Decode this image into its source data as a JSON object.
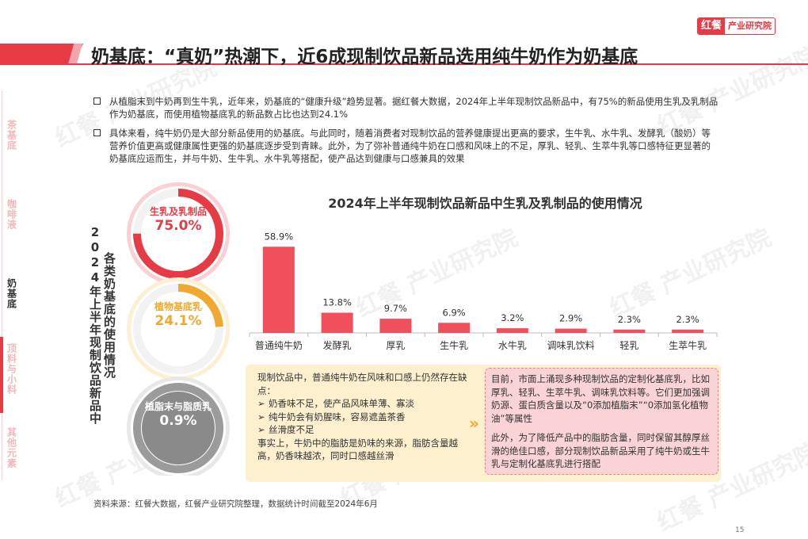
{
  "logo": {
    "mark": "红餐",
    "text": "产业研究院"
  },
  "title": "奶基底：“真奶”热潮下，近6成现制饮品新品选用纯牛奶作为奶基底",
  "sidenav": {
    "items": [
      {
        "label": "茶基底",
        "active": false
      },
      {
        "label": "咖啡液",
        "active": false
      },
      {
        "label": "奶基底",
        "active": true
      },
      {
        "label": "顶料与小料",
        "active": false
      },
      {
        "label": "其他元素",
        "active": false
      }
    ]
  },
  "bullets": [
    "从植脂末到牛奶再到生牛乳，近年来，奶基底的“健康升级”趋势显著。据红餐大数据，2024年上半年现制饮品新品中，有75%的新品使用生乳及乳制品作为奶基底，而使用植物基底乳的新品数占比也达到24.1%",
    "具体来看，纯牛奶仍是大部分新品使用的奶基底。与此同时，随着消费者对现制饮品的营养健康提出更高的要求，生牛乳、水牛乳、发酵乳（酸奶）等营养价值更高或健康属性更强的奶基底逐步受到青睐。此外，为了弥补普通纯牛奶在口感和风味上的不足，厚乳、轻乳、生萃牛乳等口感特征更显著的奶基底应运而生，并与牛奶、生牛乳、水牛乳等搭配，使产品达到健康与口感兼具的效果"
  ],
  "rings": {
    "vertical_title_1": "2024年上半年现制饮品新品中",
    "vertical_title_2": "各类奶基底的使用情况",
    "items": [
      {
        "label": "生乳及乳制品",
        "value": "75.0%",
        "share": 75.0,
        "color": "#e63a45",
        "text_color": "#e63a45"
      },
      {
        "label": "植物基底乳",
        "value": "24.1%",
        "share": 24.1,
        "color": "#f0a830",
        "text_color": "#f0a830"
      },
      {
        "label": "植脂末与脂质乳",
        "value": "0.9%",
        "share": 0.9,
        "color": "#9b9b9b",
        "text_color": "#ffffff"
      }
    ]
  },
  "chart_data": {
    "type": "bar",
    "title": "2024年上半年现制饮品新品中生乳及乳制品的使用情况",
    "categories": [
      "普通纯牛奶",
      "发酵乳",
      "厚乳",
      "生牛乳",
      "水牛乳",
      "调味乳饮料",
      "轻乳",
      "生萃牛乳"
    ],
    "values": [
      58.9,
      13.8,
      9.7,
      6.9,
      3.2,
      2.9,
      2.3,
      2.3
    ],
    "value_labels": [
      "58.9%",
      "13.8%",
      "9.7%",
      "6.9%",
      "3.2%",
      "2.9%",
      "2.3%",
      "2.3%"
    ],
    "ylim": [
      0,
      65
    ],
    "bar_color": "#f0505c",
    "grid": false
  },
  "notes": {
    "left_intro": "现制饮品中，普通纯牛奶在风味和口感上仍然存在缺点：",
    "left_points": [
      "奶香味不足，使产品风味单薄、寡淡",
      "纯牛奶会有奶腥味，容易遮盖茶香",
      "丝滑度不足"
    ],
    "left_conclusion": "事实上，牛奶中的脂肪是奶味的来源，脂肪含量越高，奶香味越浓，同时口感越丝滑",
    "right_p1": "目前，市面上涌现多种现制饮品的定制化基底乳，比如厚乳、轻乳、生萃牛乳、调味乳饮料等。它们更加强调奶源、蛋白质含量以及“0添加植脂末”“0添加氢化植物油”等属性",
    "right_p2": "此外，为了降低产品中的脂肪含量，同时保留其醇厚丝滑的绝佳口感，部分现制饮品新品采用了纯牛奶或生牛乳与定制化基底乳进行搭配"
  },
  "source": "资料来源：红餐大数据，红餐产业研究院整理，数据统计时间截至2024年6月",
  "page_number": "15"
}
